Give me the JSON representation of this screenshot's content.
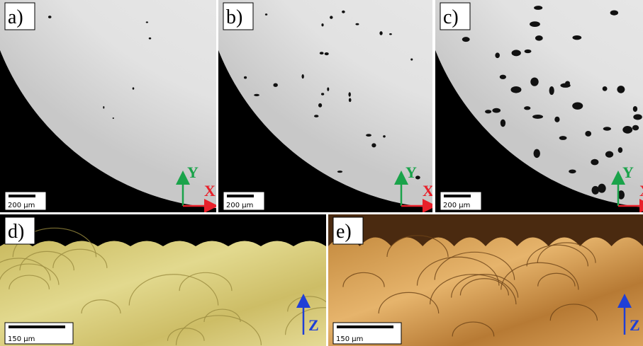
{
  "panels": [
    {
      "label": "a)",
      "scale_bar": "200 μm",
      "axes": [
        "Y",
        "X"
      ]
    },
    {
      "label": "b)",
      "scale_bar": "200 μm",
      "axes": [
        "Y",
        "X"
      ]
    },
    {
      "label": "c)",
      "scale_bar": "200 μm",
      "axes": [
        "Y",
        "X"
      ]
    },
    {
      "label": "d)",
      "scale_bar": "150 μm",
      "axes": [
        "Z"
      ]
    },
    {
      "label": "e)",
      "scale_bar": "150 μm",
      "axes": [
        "Z"
      ]
    }
  ]
}
